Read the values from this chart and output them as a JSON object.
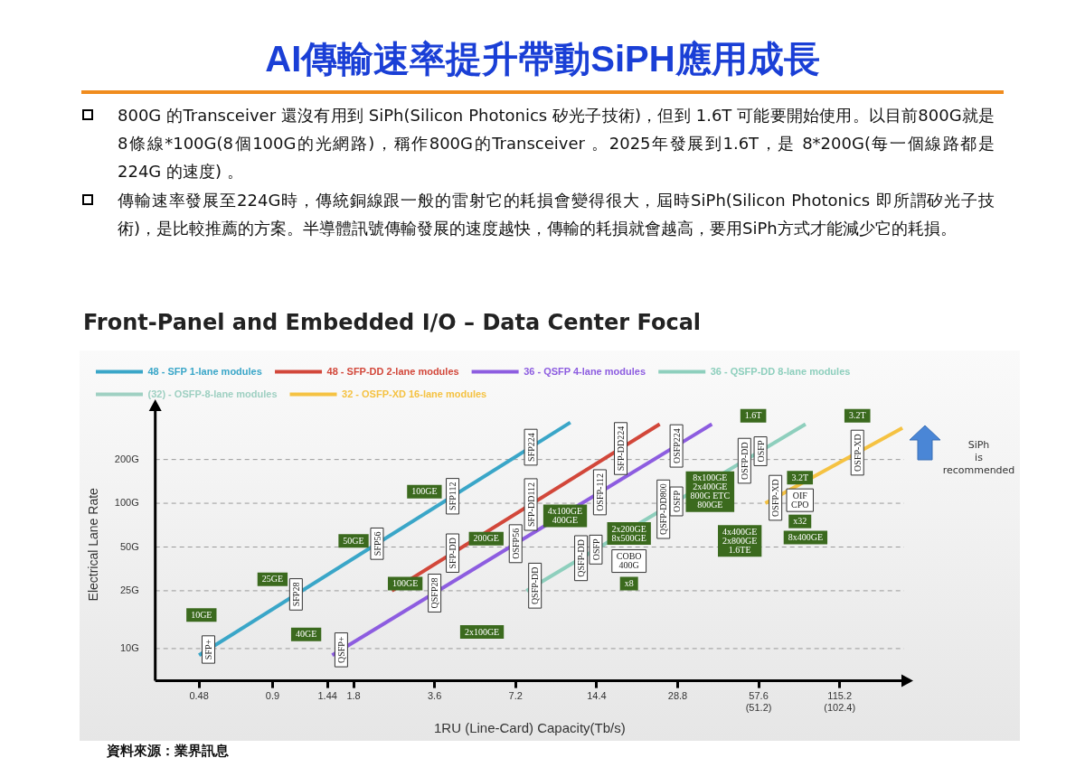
{
  "chart_data": {
    "type": "line",
    "title": "AI傳輸速率提升帶動SiPH應用成長",
    "subtitle": "Front-Panel and Embedded I/O – Data Center Focal",
    "xlabel": "1RU (Line-Card) Capacity(Tb/s)",
    "ylabel": "Electrical Lane Rate",
    "log": "xy",
    "grid": "y",
    "legend": "top left",
    "marker": "none",
    "line_style": "solid",
    "xlim": [
      0.33,
      200
    ],
    "xticks": [
      0.48,
      0.9,
      1.44,
      1.8,
      3.6,
      7.2,
      14.4,
      28.8,
      {
        "value": 57.6,
        "label": "57.6\n(51.2)"
      },
      {
        "value": 115.2,
        "label": "115.2\n(102.4)"
      }
    ],
    "ylim": [
      6,
      450
    ],
    "yticks": [
      {
        "value": 10,
        "label": "10G"
      },
      {
        "value": 25,
        "label": "25G"
      },
      {
        "value": 50,
        "label": "50G"
      },
      {
        "value": 100,
        "label": "100G"
      },
      {
        "value": 200,
        "label": "200G"
      }
    ],
    "series": [
      {
        "name": "48 - SFP 1-lane modules",
        "color": "#3aa6c8",
        "x": [
          0.48,
          11.5
        ],
        "values": [
          9,
          360
        ]
      },
      {
        "name": "48 - SFP-DD 2-lane modules",
        "color": "#d2473a",
        "x": [
          2.5,
          24.7
        ],
        "values": [
          25,
          350
        ]
      },
      {
        "name": "36 - QSFP 4-lane modules",
        "color": "#8d5de0",
        "x": [
          1.5,
          38.6
        ],
        "values": [
          9,
          350
        ]
      },
      {
        "name": "36 - QSFP-DD 8-lane modules",
        "color": "#8ecfbd",
        "x": [
          7.9,
          86
        ],
        "values": [
          25,
          350
        ]
      },
      {
        "name": "(32) - OSFP-8-lane modules",
        "color": "#9fd0c2"
      },
      {
        "name": "32 - OSFP-XD 16-lane modules",
        "color": "#f5c242",
        "x": [
          61,
          197
        ],
        "values": [
          100,
          330
        ]
      }
    ],
    "annotations": [
      {
        "text": "SFP+",
        "x": 0.52,
        "y": 9.85
      },
      {
        "text": "SFP28",
        "x": 1.1,
        "y": 23.6
      },
      {
        "text": "SFP56",
        "x": 2.2,
        "y": 52.7
      },
      {
        "text": "SFP112",
        "x": 4.2,
        "y": 111.8
      },
      {
        "text": "SFP224",
        "x": 8.2,
        "y": 243
      },
      {
        "text": "QSFP+",
        "x": 1.62,
        "y": 9.8
      },
      {
        "text": "QSFP28",
        "x": 3.6,
        "y": 24.1
      },
      {
        "text": "SFP-DD",
        "x": 4.2,
        "y": 45.4
      },
      {
        "text": "OSFP56",
        "x": 7.2,
        "y": 52.7
      },
      {
        "text": "QSFP-DD",
        "x": 8.5,
        "y": 27.1
      },
      {
        "text": "SFP-DD112",
        "x": 8.2,
        "y": 98
      },
      {
        "text": "QSFP-DD",
        "x": 12.6,
        "y": 41.9
      },
      {
        "text": "OSFP",
        "x": 14.3,
        "y": 48
      },
      {
        "text": "OSFP-112",
        "x": 14.8,
        "y": 119
      },
      {
        "text": "SFP-DD224",
        "x": 17.7,
        "y": 238
      },
      {
        "text": "QSFP-DD800",
        "x": 25.5,
        "y": 91
      },
      {
        "text": "OSFP",
        "x": 28.5,
        "y": 103
      },
      {
        "text": "OSFP224",
        "x": 28.5,
        "y": 248
      },
      {
        "text": "OSFP-DD",
        "x": 51,
        "y": 196
      },
      {
        "text": "OSFP",
        "x": 58.5,
        "y": 228
      },
      {
        "text": "OSFP-XD",
        "x": 66.5,
        "y": 109
      },
      {
        "text": "OSFP-XD",
        "x": 134,
        "y": 223
      },
      {
        "text": "10GE",
        "x": 0.49,
        "y": 17
      },
      {
        "text": "25GE",
        "x": 0.9,
        "y": 30
      },
      {
        "text": "40GE",
        "x": 1.2,
        "y": 12.5
      },
      {
        "text": "50GE",
        "x": 1.8,
        "y": 55
      },
      {
        "text": "100GE",
        "x": 3.3,
        "y": 120
      },
      {
        "text": "100GE",
        "x": 2.8,
        "y": 28
      },
      {
        "text": "200GE",
        "x": 5.6,
        "y": 57
      },
      {
        "text": "4x100GE\n400GE",
        "x": 11,
        "y": 82
      },
      {
        "text": "x8",
        "x": 19,
        "y": 28
      },
      {
        "text": "1.6T",
        "x": 55,
        "y": 400
      },
      {
        "text": "3.2T",
        "x": 82,
        "y": 150
      },
      {
        "text": "x32",
        "x": 82,
        "y": 75
      },
      {
        "text": "3.2T",
        "x": 134,
        "y": 400
      },
      {
        "text": "COBO\n400G",
        "x": 19,
        "y": 40
      },
      {
        "text": "OIF\nCPO",
        "x": 82,
        "y": 105
      },
      "800G 的Transceiver 還沒有用到 SiPh(Silicon Photonics 矽光子技術)，但到 1.6T 可能要開始使用。以目前800G就是8條線*100G(8個100G的光網路)，稱作800G的Transceiver 。2025年發展到1.6T，是 8*200G(每一個線路都是 224G 的速度) 。",
      "傳輸速率發展至224G時，傳統銅線跟一般的雷射它的耗損會變得很大，屆時SiPh(Silicon Photonics 即所謂矽光子技術)，是比較推薦的方案。半導體訊號傳輸發展的速度越快，傳輸的耗損就會越高，要用SiPh方式才能減少它的耗損。",
      "SiPh is recommended",
      "資料來源：業界訊息",
      "2x100GE",
      "2x200GE\n8x500GE",
      "8x100GE\n2x400GE\n800G ETC\n800GE",
      "4x400GE\n2x800GE\n1.6TE",
      "8x400GE"
    ]
  }
}
